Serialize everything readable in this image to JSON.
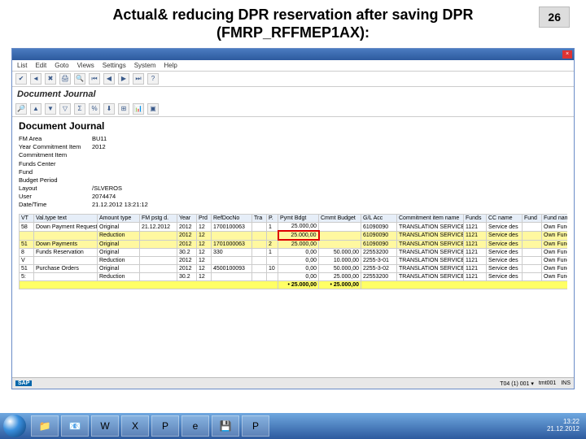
{
  "slide": {
    "title": "Actual& reducing DPR reservation after saving DPR (FMRP_RFFMEP1AX):",
    "page": "26"
  },
  "window": {
    "close": "×"
  },
  "menu": [
    "List",
    "Edit",
    "Goto",
    "Views",
    "Settings",
    "System",
    "Help"
  ],
  "screenTitle": "Document Journal",
  "docHeading": "Document Journal",
  "info": {
    "fm_area_l": "FM Area",
    "fm_area_v": "BU11",
    "year_l": "Year Commitment Item",
    "year_v": "2012",
    "citem_l": "Commitment Item",
    "citem_v": "",
    "fc_l": "Funds Center",
    "fc_v": "",
    "fund_l": "Fund",
    "fund_v": "",
    "bp_l": "Budget Period",
    "bp_v": "",
    "layout_l": "Layout",
    "layout_v": "/SLVEROS",
    "user_l": "User",
    "user_v": "2074474",
    "dt_l": "Date/Time",
    "dt_v": "21.12.2012 13:21:12"
  },
  "cols": [
    "VT",
    "Val.type text",
    "Amount type",
    "FM pstg d.",
    "Year",
    "Prd",
    "RefDocNo",
    "Tra",
    "P.",
    "Pymt Bdgt",
    "Cmmt Budget",
    "G/L Acc",
    "Commitment item name",
    "Funds",
    "CC name",
    "Fund",
    "Fund name"
  ],
  "rows": [
    {
      "c": [
        "58",
        "Down Payment Requests",
        "Original",
        "21.12.2012",
        "2012",
        "12",
        "1700100063",
        "",
        "1",
        "25.000,00",
        "",
        "61090090",
        "TRANSLATION SERVICE",
        "1121",
        "Service des",
        "",
        "Own Funds"
      ],
      "hl": false
    },
    {
      "c": [
        "",
        "",
        "Reduction",
        "",
        "2012",
        "12",
        "",
        "",
        "",
        "25.000,00",
        "",
        "61090090",
        "TRANSLATION SERVICE",
        "1121",
        "Service des",
        "",
        "Own Funds"
      ],
      "hl": true,
      "box": true
    },
    {
      "c": [
        "51",
        "Down Payments",
        "Original",
        "",
        "2012",
        "12",
        "1701000063",
        "",
        "2",
        "25.000,00",
        "",
        "61090090",
        "TRANSLATION SERVICE",
        "1121",
        "Service des",
        "",
        "Own Funds"
      ],
      "hl": true
    },
    {
      "c": [
        "8",
        "Funds Reservation",
        "Original",
        "",
        "30.2",
        "12",
        "330",
        "",
        "1",
        "0,00",
        "50.000,00",
        "22553200",
        "TRANSLATION SERVICE",
        "1121",
        "Service des",
        "",
        "Own Funds"
      ],
      "hl": false
    },
    {
      "c": [
        "V",
        "",
        "Reduction",
        "",
        "2012",
        "12",
        "",
        "",
        "",
        "0,00",
        "10.000,00",
        "2255-3-01",
        "TRANSLATION SERVICE",
        "1121",
        "Service des",
        "",
        "Own Funds"
      ],
      "hl": false
    },
    {
      "c": [
        "51",
        "Purchase Orders",
        "Original",
        "",
        "2012",
        "12",
        "4500100093",
        "",
        "10",
        "0,00",
        "50.000,00",
        "2255-3-02",
        "TRANSLATION SERVICE",
        "1121",
        "Service des",
        "",
        "Own Funds"
      ],
      "hl": false
    },
    {
      "c": [
        "5:",
        "",
        "Reduction",
        "",
        "30.2",
        "12",
        "",
        "",
        "",
        "0,00",
        "25.000,00",
        "22553200",
        "TRANSLATION SERVICE",
        "1121",
        "Service des",
        "",
        "Own Funds"
      ],
      "hl": false
    }
  ],
  "totals": {
    "pymt": "• 25.000,00",
    "cmmt": "• 25.000,00"
  },
  "status": {
    "sap": "SAP",
    "conn": "T04 (1) 001 ▾",
    "srv": "tmt001",
    "ins": "INS"
  },
  "tray": {
    "time": "13:22",
    "date": "21.12.2012"
  },
  "taskbar": {
    "start": "start",
    "items": [
      {
        "name": "explorer",
        "glyph": "📁"
      },
      {
        "name": "outlook",
        "glyph": "📧"
      },
      {
        "name": "word",
        "glyph": "W"
      },
      {
        "name": "excel",
        "glyph": "X"
      },
      {
        "name": "powerpoint",
        "glyph": "P"
      },
      {
        "name": "ie",
        "glyph": "e"
      },
      {
        "name": "save",
        "glyph": "💾"
      },
      {
        "name": "ppt2",
        "glyph": "P"
      }
    ]
  }
}
